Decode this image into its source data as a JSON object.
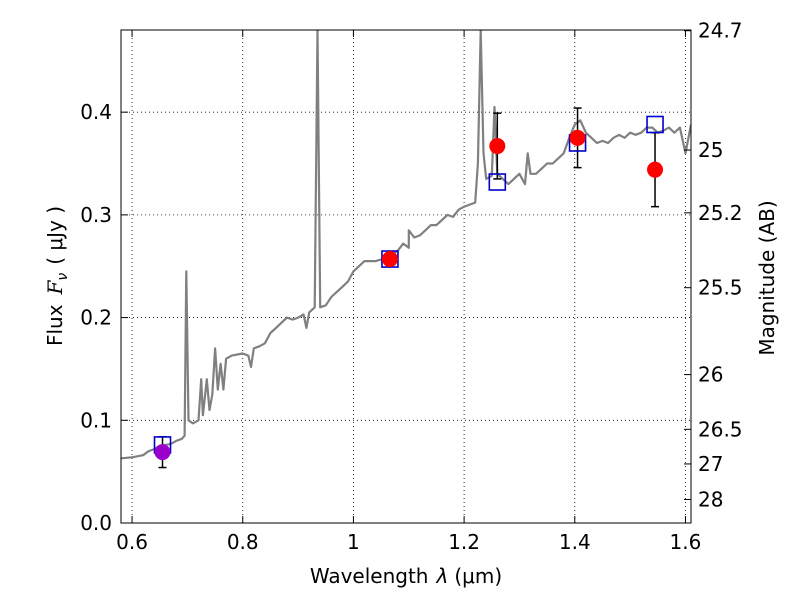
{
  "chart_data": {
    "type": "scatter",
    "xlabel_prefix": "Wavelength",
    "xlabel_symbol": "λ",
    "xlabel_unit": "(μm)",
    "ylabel_prefix": "Flux",
    "ylabel_symbol": "F",
    "ylabel_sub": "ν",
    "ylabel_unit": "( μJy )",
    "y2label": "Magnitude (AB)",
    "xlim": [
      0.58,
      1.61
    ],
    "ylim": [
      0.0,
      0.48
    ],
    "x_ticks": [
      0.6,
      0.8,
      1.0,
      1.2,
      1.4,
      1.6
    ],
    "x_tick_labels": [
      "0.6",
      "0.8",
      "1",
      "1.2",
      "1.4",
      "1.6"
    ],
    "y_ticks": [
      0.0,
      0.1,
      0.2,
      0.3,
      0.4
    ],
    "y_tick_labels": [
      "0.0",
      "0.1",
      "0.2",
      "0.3",
      "0.4"
    ],
    "y2_ticks": [
      {
        "label": "24.7",
        "flux": 0.4793
      },
      {
        "label": "25",
        "flux": 0.3631
      },
      {
        "label": "25.2",
        "flux": 0.302
      },
      {
        "label": "25.5",
        "flux": 0.2291
      },
      {
        "label": "26",
        "flux": 0.1445
      },
      {
        "label": "26.5",
        "flux": 0.0912
      },
      {
        "label": "27",
        "flux": 0.0575
      },
      {
        "label": "28",
        "flux": 0.0229
      }
    ],
    "grid": true,
    "series": [
      {
        "kind": "spectrum_line",
        "color": "#808080",
        "points": [
          [
            0.58,
            0.063
          ],
          [
            0.6,
            0.064
          ],
          [
            0.62,
            0.066
          ],
          [
            0.63,
            0.07
          ],
          [
            0.64,
            0.072
          ],
          [
            0.65,
            0.075
          ],
          [
            0.66,
            0.076
          ],
          [
            0.67,
            0.077
          ],
          [
            0.68,
            0.08
          ],
          [
            0.69,
            0.082
          ],
          [
            0.695,
            0.085
          ],
          [
            0.698,
            0.245
          ],
          [
            0.702,
            0.1
          ],
          [
            0.71,
            0.097
          ],
          [
            0.72,
            0.1
          ],
          [
            0.725,
            0.14
          ],
          [
            0.728,
            0.105
          ],
          [
            0.735,
            0.14
          ],
          [
            0.74,
            0.11
          ],
          [
            0.745,
            0.125
          ],
          [
            0.75,
            0.17
          ],
          [
            0.755,
            0.13
          ],
          [
            0.76,
            0.155
          ],
          [
            0.765,
            0.13
          ],
          [
            0.77,
            0.16
          ],
          [
            0.78,
            0.163
          ],
          [
            0.8,
            0.165
          ],
          [
            0.81,
            0.163
          ],
          [
            0.815,
            0.152
          ],
          [
            0.82,
            0.17
          ],
          [
            0.83,
            0.172
          ],
          [
            0.84,
            0.175
          ],
          [
            0.85,
            0.185
          ],
          [
            0.86,
            0.19
          ],
          [
            0.87,
            0.195
          ],
          [
            0.88,
            0.2
          ],
          [
            0.89,
            0.198
          ],
          [
            0.9,
            0.2
          ],
          [
            0.91,
            0.203
          ],
          [
            0.915,
            0.19
          ],
          [
            0.92,
            0.205
          ],
          [
            0.93,
            0.21
          ],
          [
            0.935,
            0.48
          ],
          [
            0.94,
            0.21
          ],
          [
            0.95,
            0.212
          ],
          [
            0.96,
            0.22
          ],
          [
            0.97,
            0.225
          ],
          [
            0.98,
            0.23
          ],
          [
            0.99,
            0.235
          ],
          [
            1.0,
            0.245
          ],
          [
            1.01,
            0.25
          ],
          [
            1.02,
            0.255
          ],
          [
            1.04,
            0.255
          ],
          [
            1.06,
            0.258
          ],
          [
            1.08,
            0.265
          ],
          [
            1.09,
            0.272
          ],
          [
            1.1,
            0.268
          ],
          [
            1.1,
            0.285
          ],
          [
            1.11,
            0.278
          ],
          [
            1.12,
            0.28
          ],
          [
            1.13,
            0.285
          ],
          [
            1.14,
            0.29
          ],
          [
            1.15,
            0.29
          ],
          [
            1.16,
            0.295
          ],
          [
            1.17,
            0.3
          ],
          [
            1.18,
            0.298
          ],
          [
            1.19,
            0.305
          ],
          [
            1.2,
            0.308
          ],
          [
            1.21,
            0.31
          ],
          [
            1.22,
            0.312
          ],
          [
            1.225,
            0.35
          ],
          [
            1.23,
            0.48
          ],
          [
            1.235,
            0.36
          ],
          [
            1.24,
            0.335
          ],
          [
            1.25,
            0.338
          ],
          [
            1.255,
            0.405
          ],
          [
            1.26,
            0.34
          ],
          [
            1.27,
            0.335
          ],
          [
            1.28,
            0.33
          ],
          [
            1.29,
            0.335
          ],
          [
            1.3,
            0.34
          ],
          [
            1.31,
            0.33
          ],
          [
            1.315,
            0.36
          ],
          [
            1.32,
            0.34
          ],
          [
            1.33,
            0.34
          ],
          [
            1.34,
            0.345
          ],
          [
            1.35,
            0.35
          ],
          [
            1.36,
            0.35
          ],
          [
            1.37,
            0.355
          ],
          [
            1.38,
            0.36
          ],
          [
            1.39,
            0.375
          ],
          [
            1.4,
            0.388
          ],
          [
            1.41,
            0.392
          ],
          [
            1.42,
            0.38
          ],
          [
            1.43,
            0.375
          ],
          [
            1.44,
            0.37
          ],
          [
            1.45,
            0.372
          ],
          [
            1.46,
            0.37
          ],
          [
            1.47,
            0.375
          ],
          [
            1.48,
            0.378
          ],
          [
            1.49,
            0.375
          ],
          [
            1.5,
            0.38
          ],
          [
            1.51,
            0.378
          ],
          [
            1.52,
            0.38
          ],
          [
            1.53,
            0.385
          ],
          [
            1.54,
            0.385
          ],
          [
            1.55,
            0.38
          ],
          [
            1.56,
            0.382
          ],
          [
            1.57,
            0.385
          ],
          [
            1.58,
            0.38
          ],
          [
            1.59,
            0.385
          ],
          [
            1.6,
            0.36
          ],
          [
            1.61,
            0.388
          ]
        ]
      },
      {
        "kind": "synthetic_photometry",
        "marker": "open-square",
        "color": "#0000cc",
        "points": [
          {
            "x": 0.655,
            "y": 0.076
          },
          {
            "x": 1.066,
            "y": 0.257
          },
          {
            "x": 1.26,
            "y": 0.332
          },
          {
            "x": 1.405,
            "y": 0.37
          },
          {
            "x": 1.545,
            "y": 0.388
          }
        ]
      },
      {
        "kind": "observed_photometry",
        "marker": "filled-circle",
        "color": "#ff0000",
        "points": [
          {
            "x": 1.066,
            "y": 0.257,
            "err": 0.0
          },
          {
            "x": 1.26,
            "y": 0.367,
            "err": 0.032
          },
          {
            "x": 1.405,
            "y": 0.375,
            "err": 0.029
          },
          {
            "x": 1.545,
            "y": 0.344,
            "err": 0.036
          }
        ]
      },
      {
        "kind": "observed_photometry_blue_band",
        "marker": "filled-circle",
        "color": "#9900cc",
        "points": [
          {
            "x": 0.655,
            "y": 0.069,
            "err": 0.015
          }
        ]
      }
    ]
  }
}
